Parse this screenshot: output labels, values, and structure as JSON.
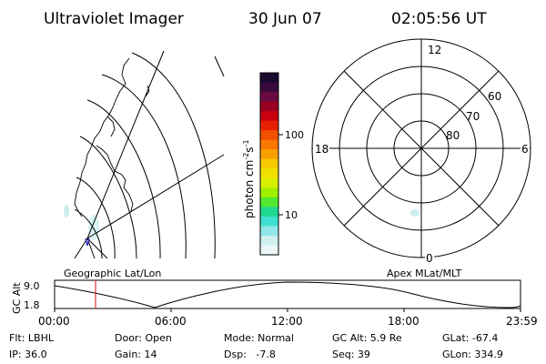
{
  "header": {
    "instrument": "Ultraviolet Imager",
    "date": "30 Jun 07",
    "time": "02:05:56 UT"
  },
  "left_panel": {
    "label": "Geographic Lat/Lon"
  },
  "colorbar": {
    "unit": "photon cm",
    "unit_exp1": "-2",
    "unit_mid": "s",
    "unit_exp2": "-1",
    "ticks": [
      "100",
      "10"
    ],
    "colors": [
      "#1a0a2e",
      "#3a0a3e",
      "#6a0a40",
      "#9a0020",
      "#c80010",
      "#e82000",
      "#f05000",
      "#f87800",
      "#f8a000",
      "#f8c800",
      "#f0e000",
      "#d8f000",
      "#a0f000",
      "#50e830",
      "#20d890",
      "#40e0d0",
      "#90e8e8",
      "#d0f0f0",
      "#ecf6f6"
    ]
  },
  "polar_plot": {
    "label": "Apex MLat/MLT",
    "mlt_labels": {
      "top": "12",
      "left": "18",
      "right": "6",
      "bottom": "0"
    },
    "lat_labels": [
      "60",
      "70",
      "80"
    ]
  },
  "timeline": {
    "ylabel": "GC Alt",
    "yticks": [
      "9.0",
      "1.8"
    ],
    "xticks": [
      "00:00",
      "06:00",
      "12:00",
      "18:00",
      "23:59"
    ],
    "marker_time": "02:05:56"
  },
  "status": {
    "row1": [
      {
        "key": "flt",
        "text": "Flt: LBHL"
      },
      {
        "key": "door",
        "text": "Door: Open"
      },
      {
        "key": "mode",
        "text": "Mode: Normal"
      },
      {
        "key": "gcalt",
        "text": "GC Alt: 5.9 Re"
      },
      {
        "key": "glat",
        "text": "GLat: -67.4"
      }
    ],
    "row2": [
      {
        "key": "ip",
        "text": "IP: 36.0"
      },
      {
        "key": "gain",
        "text": "Gain: 14"
      },
      {
        "key": "dsp",
        "text": "Dsp:   -7.8"
      },
      {
        "key": "seq",
        "text": "Seq: 39"
      },
      {
        "key": "glon",
        "text": "GLon: 334.9"
      }
    ]
  },
  "colors": {
    "marker": "#e03030",
    "haze": "#d0f0f0"
  }
}
